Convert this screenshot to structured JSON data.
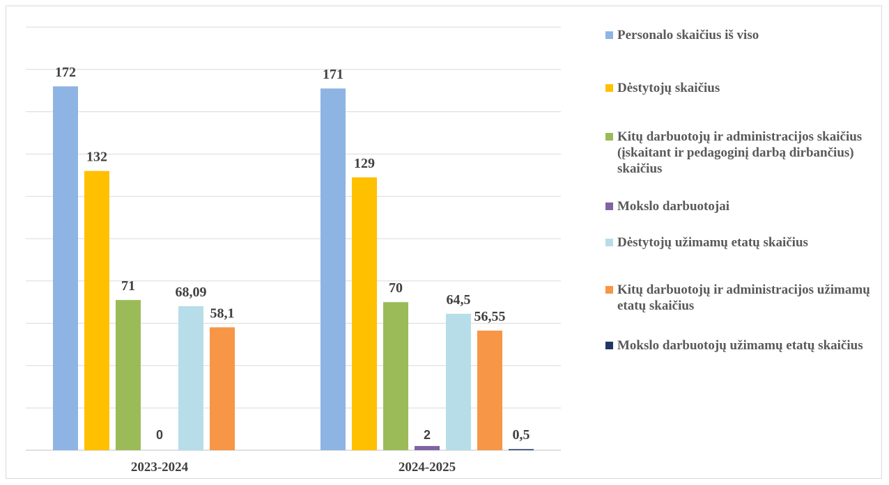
{
  "chart_data": {
    "type": "bar",
    "categories": [
      "2023-2024",
      "2024-2025"
    ],
    "series": [
      {
        "name": "Personalo skaičius iš viso",
        "color": "#8EB4E3",
        "values": [
          172,
          171
        ],
        "labels": [
          "172",
          "171"
        ]
      },
      {
        "name": "Dėstytojų skaičius",
        "color": "#FFC000",
        "values": [
          132,
          129
        ],
        "labels": [
          "132",
          "129"
        ]
      },
      {
        "name": "Kitų darbuotojų ir administracijos skaičius (įskaitant ir pedagoginį darbą dirbančius) skaičius",
        "color": "#9BBB59",
        "values": [
          71,
          70
        ],
        "labels": [
          "71",
          "70"
        ]
      },
      {
        "name": "Mokslo darbuotojai",
        "color": "#8064A2",
        "values": [
          0,
          2
        ],
        "labels": [
          "0",
          "2"
        ]
      },
      {
        "name": "Dėstytojų užimamų etatų skaičius",
        "color": "#B7DEE8",
        "values": [
          68.09,
          64.5
        ],
        "labels": [
          "68,09",
          "64,5"
        ]
      },
      {
        "name": "Kitų darbuotojų ir administracijos užimamų etatų skaičius",
        "color": "#F79646",
        "values": [
          58.1,
          56.55
        ],
        "labels": [
          "58,1",
          "56,55"
        ]
      },
      {
        "name": "Mokslo darbuotojų užimamų etatų skaičius",
        "color": "#1F3864",
        "values": [
          null,
          0.5
        ],
        "labels": [
          null,
          "0,5"
        ]
      }
    ],
    "ylim": [
      0,
      200
    ],
    "grid": true,
    "legend_position": "right"
  }
}
